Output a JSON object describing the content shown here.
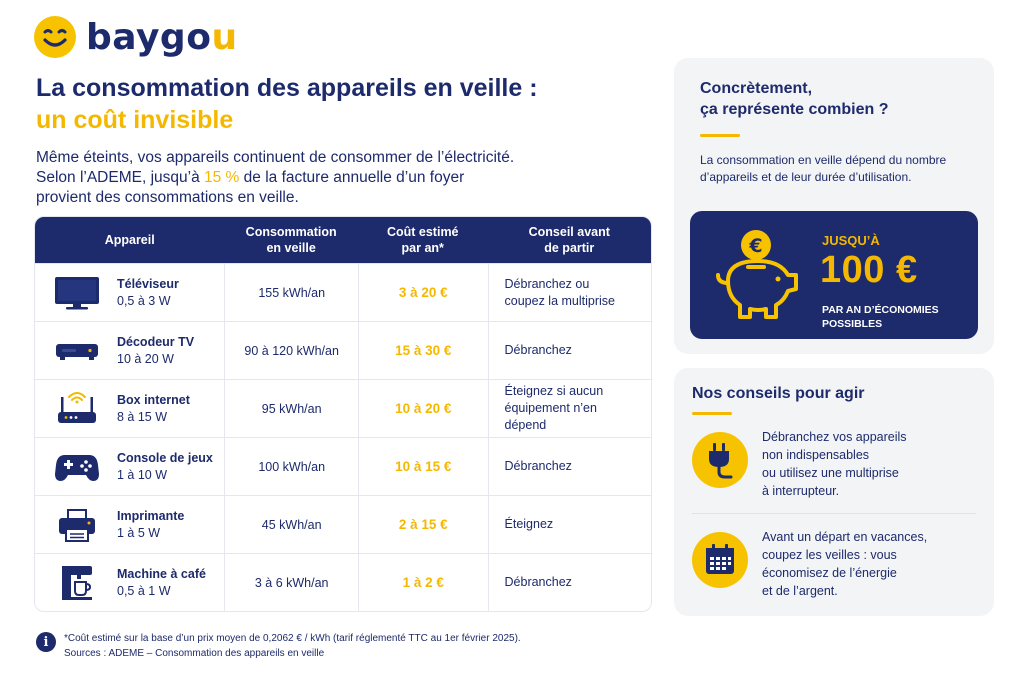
{
  "brand": {
    "name_main": "baygo",
    "name_accent": "u"
  },
  "title": {
    "line1": "La consommation des appareils en veille :",
    "line2": "un coût invisible"
  },
  "intro": {
    "line1": "Même éteints, vos appareils continuent de consommer de l’électricité.",
    "line2_pre": "Selon l’ADEME, jusqu’à ",
    "line2_hl": "15 %",
    "line2_post": " de la facture annuelle d’un foyer",
    "line3": "provient des consommations en veille."
  },
  "table": {
    "headers": {
      "device": "Appareil",
      "consumption_l1": "Consommation",
      "consumption_l2": "en veille",
      "cost_l1": "Coût estimé",
      "cost_l2": "par an*",
      "advice_l1": "Conseil avant",
      "advice_l2": "de partir"
    },
    "rows": [
      {
        "icon": "tv-icon",
        "name": "Téléviseur",
        "power": "0,5 à 3 W",
        "consumption": "155 kWh/an",
        "cost": "3 à 20 €",
        "advice_l1": "Débranchez ou",
        "advice_l2": "coupez la multiprise",
        "advice_l3": ""
      },
      {
        "icon": "tv-decoder-icon",
        "name": "Décodeur TV",
        "power": "10 à 20 W",
        "consumption": "90 à 120 kWh/an",
        "cost": "15 à 30 €",
        "advice_l1": "Débranchez",
        "advice_l2": "",
        "advice_l3": ""
      },
      {
        "icon": "router-icon",
        "name": "Box internet",
        "power": "8 à 15 W",
        "consumption": "95 kWh/an",
        "cost": "10 à 20 €",
        "advice_l1": "Éteignez si aucun",
        "advice_l2": "équipement n’en",
        "advice_l3": "dépend"
      },
      {
        "icon": "gamepad-icon",
        "name": "Console de jeux",
        "power": "1 à 10 W",
        "consumption": "100 kWh/an",
        "cost": "10 à 15 €",
        "advice_l1": "Débranchez",
        "advice_l2": "",
        "advice_l3": ""
      },
      {
        "icon": "printer-icon",
        "name": "Imprimante",
        "power": "1 à 5 W",
        "consumption": "45 kWh/an",
        "cost": "2 à 15 €",
        "advice_l1": "Éteignez",
        "advice_l2": "",
        "advice_l3": ""
      },
      {
        "icon": "coffee-machine-icon",
        "name": "Machine à café",
        "power": "0,5 à 1 W",
        "consumption": "3 à 6 kWh/an",
        "cost": "1 à 2 €",
        "advice_l1": "Débranchez",
        "advice_l2": "",
        "advice_l3": ""
      }
    ]
  },
  "footnote": {
    "line1": "*Coût estimé sur la base d’un prix moyen de 0,2062 € / kWh (tarif réglementé TTC au 1er février 2025).",
    "line2": "Sources : ADEME – Consommation des appareils en veille"
  },
  "panel1": {
    "title_l1": "Concrètement,",
    "title_l2": "ça représente combien ?",
    "text_l1": "La consommation en veille dépend du nombre",
    "text_l2": "d’appareils et de leur durée d’utilisation.",
    "card": {
      "upto": "JUSQU’À",
      "amount": "100 €",
      "sub_l1": "PAR AN D’ÉCONOMIES",
      "sub_l2": "POSSIBLES",
      "coin_symbol": "€"
    }
  },
  "panel2": {
    "title": "Nos conseils pour agir",
    "tips": [
      {
        "icon": "plug-icon",
        "l1": "Débranchez vos appareils",
        "l2": "non indispensables",
        "l3": "ou utilisez une multiprise",
        "l4": "à interrupteur."
      },
      {
        "icon": "calendar-icon",
        "l1": "Avant un départ en vacances,",
        "l2": "coupez les veilles : vous",
        "l3": "économisez de l’énergie",
        "l4": "et de l’argent."
      }
    ]
  },
  "colors": {
    "navy": "#1d2a6b",
    "yellow": "#f5b800",
    "panel_bg": "#f3f4f6"
  }
}
